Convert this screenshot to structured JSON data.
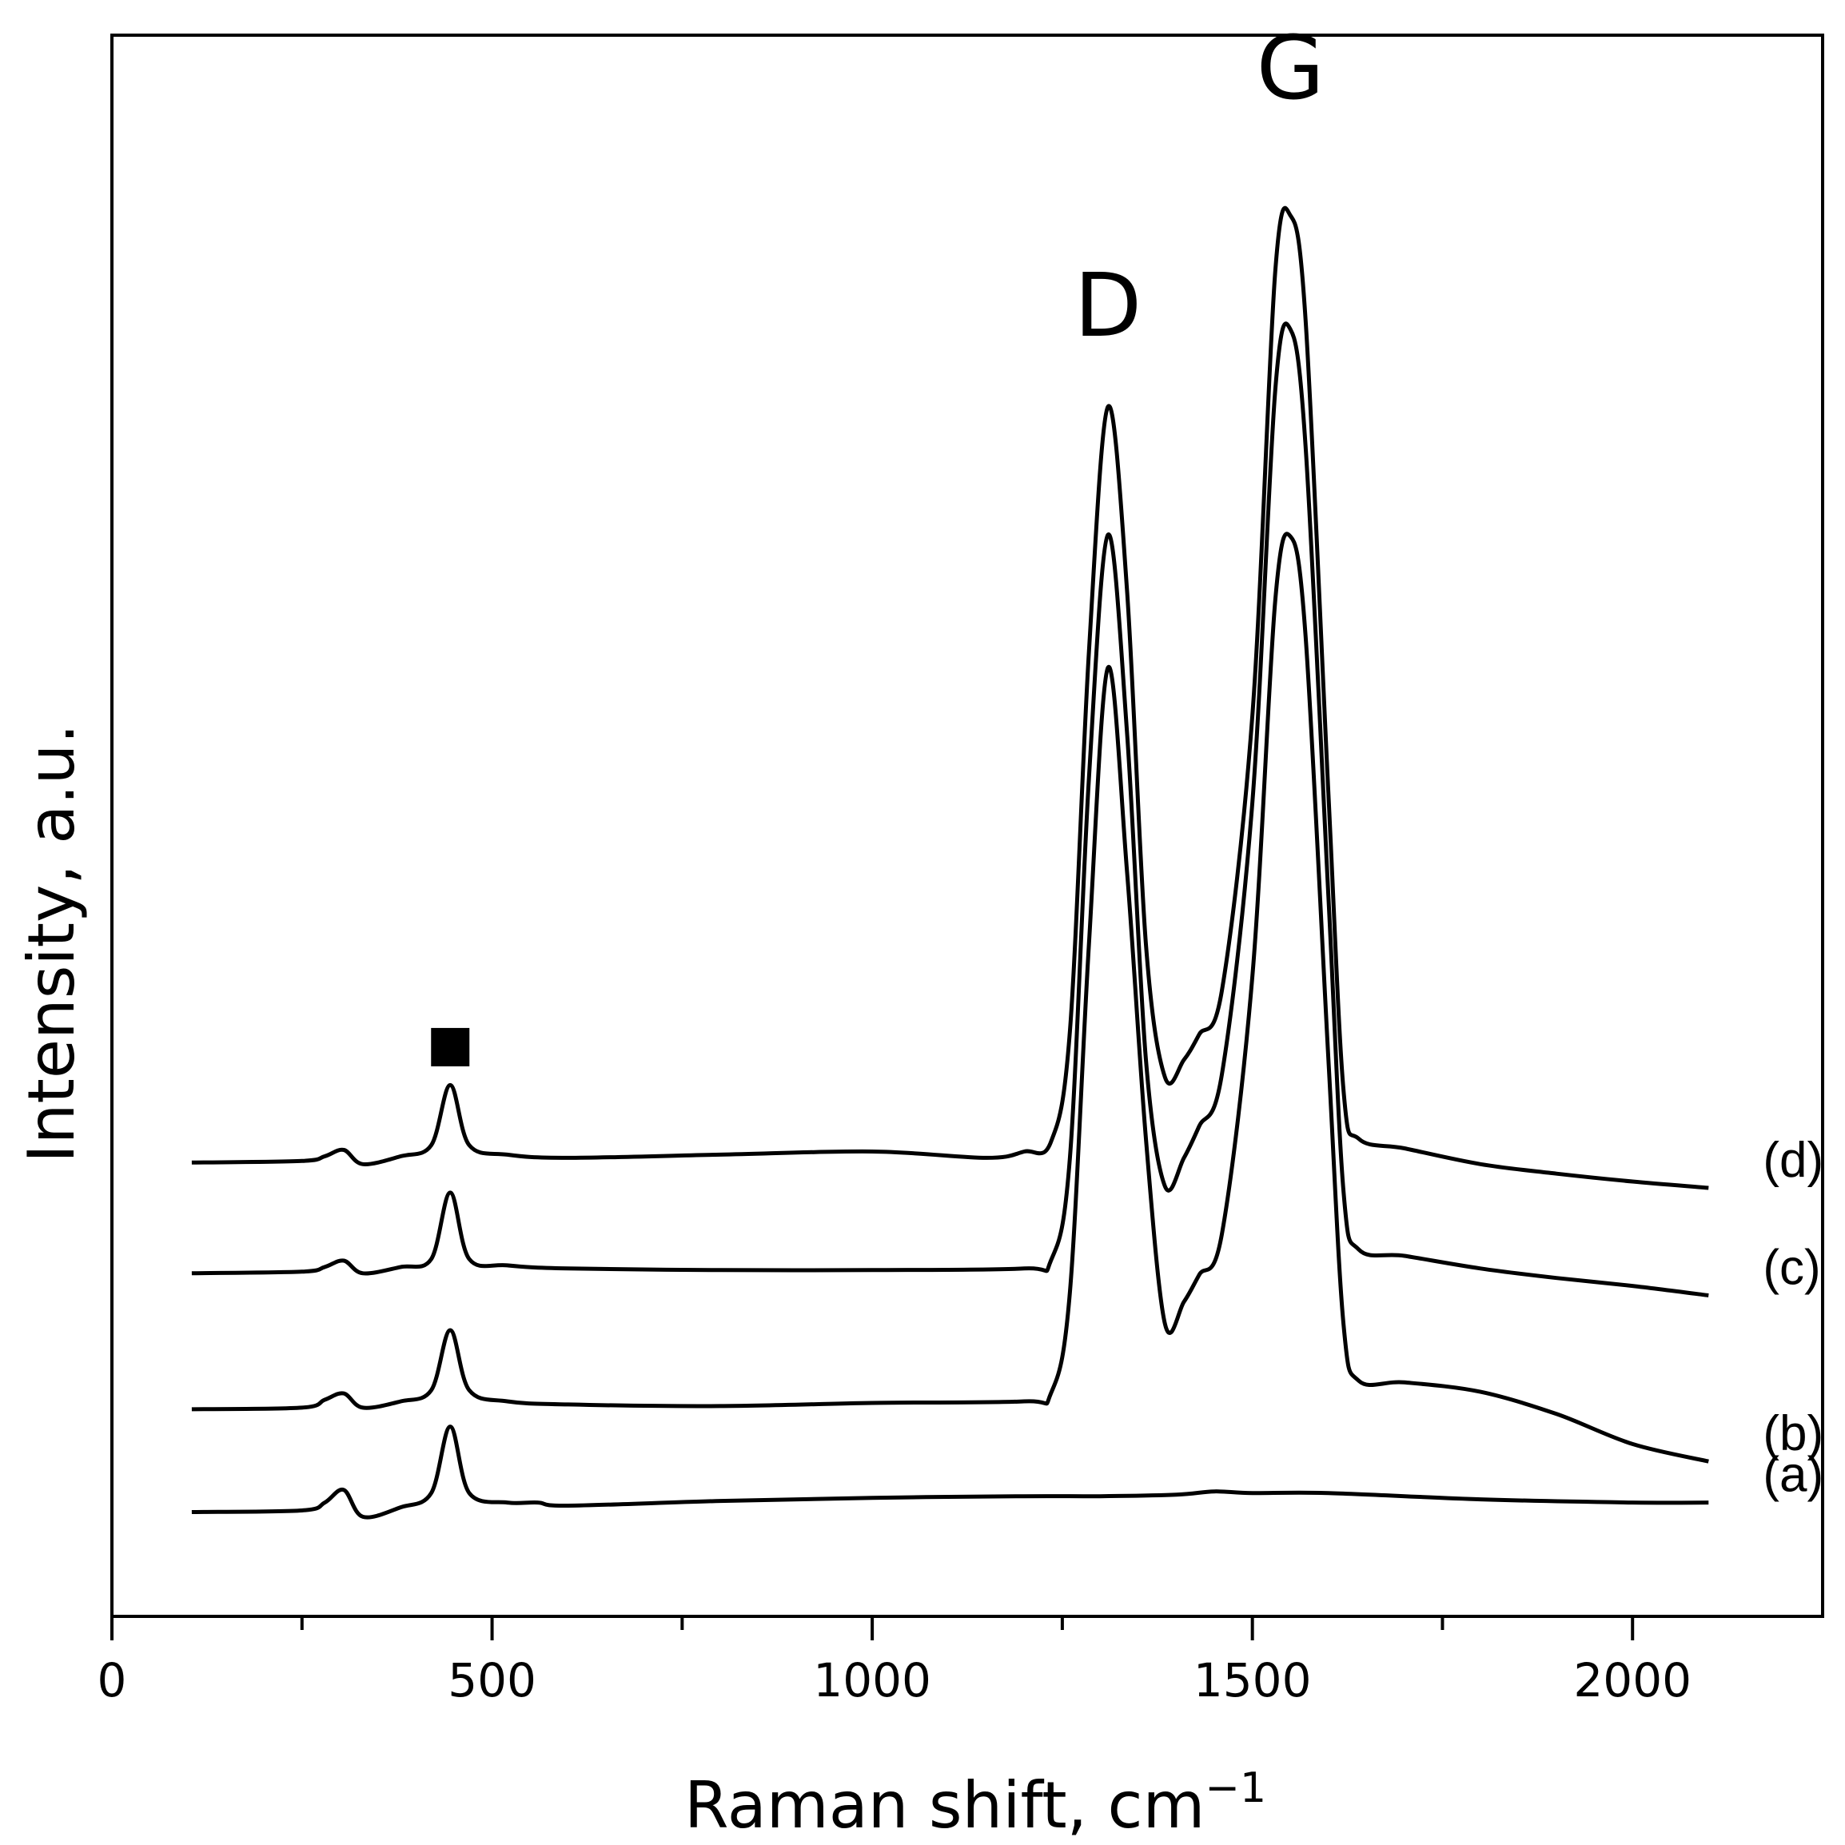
{
  "chart_data": {
    "type": "line",
    "title": "",
    "xlabel": "Raman shift, cm",
    "xlabel_superscript": "−1",
    "ylabel": "Intensity, a.u.",
    "xlim": [
      0,
      2250
    ],
    "ylim": [
      0,
      100
    ],
    "x_ticks": [
      {
        "value": 0,
        "label": "0"
      },
      {
        "value": 500,
        "label": "500"
      },
      {
        "value": 1000,
        "label": "1000"
      },
      {
        "value": 1500,
        "label": "1500"
      },
      {
        "value": 2000,
        "label": "2000"
      }
    ],
    "x_minor_ticks": [
      250,
      750,
      1250,
      1750
    ],
    "grid": false,
    "y_ticks_shown": false,
    "annotations": [
      {
        "text": "D",
        "x": 1310,
        "y": 81
      },
      {
        "text": "G",
        "x": 1550,
        "y": 96
      },
      {
        "marker": "filled-square",
        "x": 445,
        "y": 36
      }
    ],
    "series": [
      {
        "name": "(a)",
        "x": [
          105,
          250,
          280,
          305,
          330,
          380,
          420,
          445,
          470,
          520,
          560,
          600,
          800,
          1000,
          1200,
          1300,
          1400,
          1450,
          1500,
          1600,
          1800,
          2000,
          2100
        ],
        "y": [
          6.6,
          6.7,
          7.2,
          8.0,
          6.3,
          6.9,
          7.8,
          12.0,
          7.8,
          7.2,
          7.2,
          7.0,
          7.3,
          7.5,
          7.6,
          7.6,
          7.7,
          7.9,
          7.8,
          7.8,
          7.4,
          7.2,
          7.2
        ]
      },
      {
        "name": "(b)",
        "x": [
          105,
          250,
          280,
          305,
          330,
          380,
          420,
          445,
          470,
          520,
          600,
          800,
          1000,
          1200,
          1235,
          1260,
          1285,
          1310,
          1335,
          1360,
          1385,
          1410,
          1430,
          1460,
          1500,
          1530,
          1550,
          1570,
          1600,
          1620,
          1640,
          1700,
          1800,
          1900,
          2000,
          2100
        ],
        "y": [
          13.1,
          13.2,
          13.7,
          14.1,
          13.2,
          13.6,
          14.3,
          18.1,
          14.3,
          13.6,
          13.4,
          13.3,
          13.5,
          13.6,
          14.1,
          20.5,
          42.5,
          60.0,
          47.2,
          30.2,
          18.5,
          19.9,
          21.6,
          24.2,
          40.5,
          64.2,
          68.3,
          62.0,
          35.2,
          18.4,
          14.9,
          14.8,
          14.2,
          12.8,
          10.9,
          9.8
        ]
      },
      {
        "name": "(c)",
        "x": [
          105,
          250,
          280,
          305,
          330,
          380,
          420,
          445,
          470,
          520,
          600,
          800,
          1000,
          1200,
          1235,
          1260,
          1285,
          1310,
          1335,
          1360,
          1385,
          1410,
          1430,
          1460,
          1500,
          1530,
          1550,
          1570,
          1600,
          1620,
          1640,
          1700,
          1800,
          1900,
          2000,
          2100
        ],
        "y": [
          21.7,
          21.8,
          22.1,
          22.5,
          21.7,
          22.1,
          22.6,
          26.8,
          22.6,
          22.2,
          22.0,
          21.9,
          21.9,
          22.0,
          22.5,
          29.0,
          53.0,
          68.4,
          56.0,
          35.2,
          27.2,
          29.0,
          31.0,
          34.3,
          51.5,
          77.5,
          81.4,
          74.0,
          45.5,
          26.8,
          23.2,
          22.8,
          22.0,
          21.4,
          20.9,
          20.3
        ]
      },
      {
        "name": "(d)",
        "x": [
          105,
          250,
          280,
          305,
          330,
          380,
          420,
          445,
          470,
          520,
          600,
          800,
          1000,
          1150,
          1200,
          1235,
          1260,
          1285,
          1310,
          1335,
          1360,
          1385,
          1410,
          1430,
          1460,
          1500,
          1530,
          1550,
          1570,
          1600,
          1620,
          1640,
          1700,
          1800,
          1900,
          2000,
          2100
        ],
        "y": [
          28.7,
          28.8,
          29.1,
          29.5,
          28.6,
          29.1,
          29.8,
          33.6,
          29.8,
          29.2,
          29.0,
          29.2,
          29.4,
          29.0,
          29.4,
          30.0,
          37.0,
          61.0,
          76.5,
          65.0,
          42.5,
          34.1,
          35.2,
          36.8,
          39.6,
          57.0,
          85.0,
          88.6,
          82.0,
          52.0,
          33.2,
          30.2,
          29.6,
          28.6,
          28.0,
          27.5,
          27.1
        ]
      }
    ]
  }
}
